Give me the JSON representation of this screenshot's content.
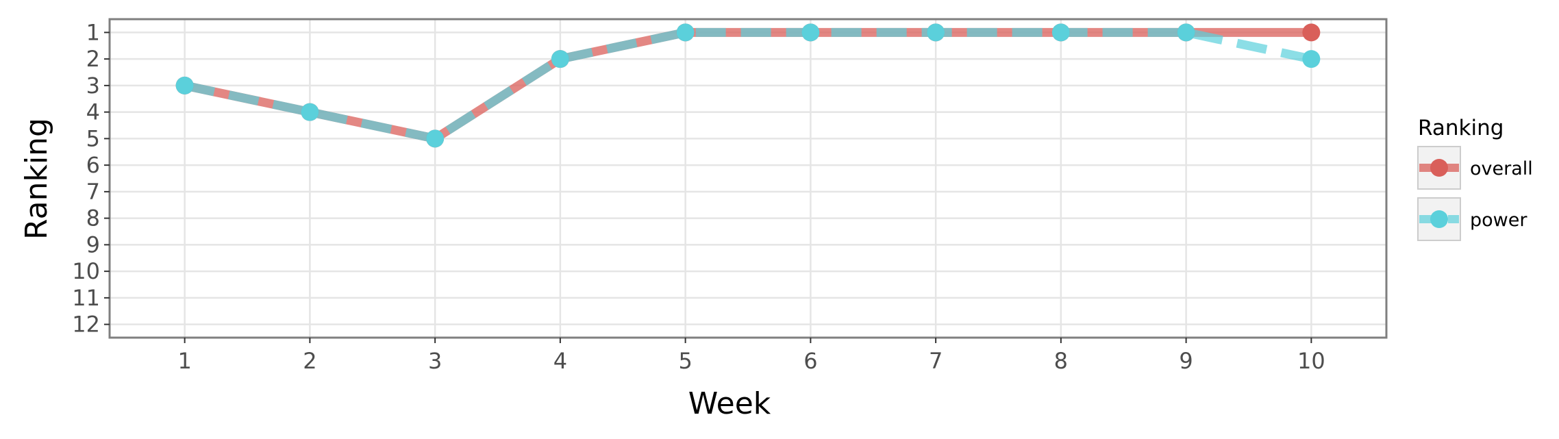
{
  "chart_data": {
    "type": "line",
    "xlabel": "Week",
    "ylabel": "Ranking",
    "x": [
      1,
      2,
      3,
      4,
      5,
      6,
      7,
      8,
      9,
      10
    ],
    "xlim": [
      0.4,
      10.6
    ],
    "ylim": [
      12.5,
      0.5
    ],
    "y_reversed": true,
    "yticks": [
      1,
      2,
      3,
      4,
      5,
      6,
      7,
      8,
      9,
      10,
      11,
      12
    ],
    "grid": true,
    "legend": {
      "title": "Ranking",
      "position": "right"
    },
    "series": [
      {
        "name": "overall",
        "color": "#d95f5a",
        "values": [
          3,
          4,
          5,
          2,
          1,
          1,
          1,
          1,
          1,
          1
        ]
      },
      {
        "name": "power",
        "color": "#5bd0db",
        "values": [
          3,
          4,
          5,
          2,
          1,
          1,
          1,
          1,
          1,
          2
        ]
      }
    ]
  }
}
